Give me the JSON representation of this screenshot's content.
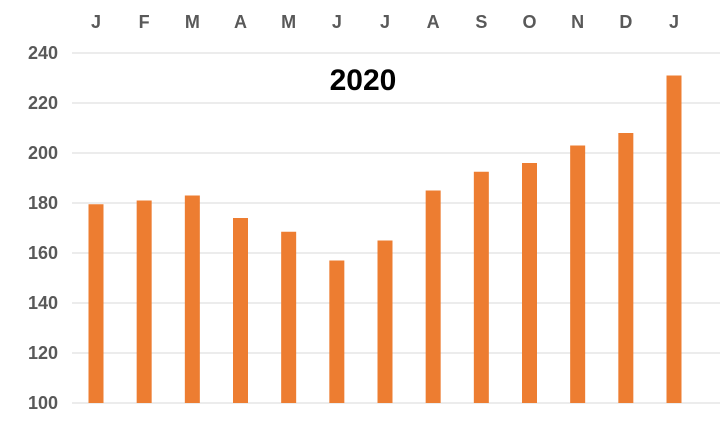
{
  "chart_data": {
    "type": "bar",
    "title": "2020",
    "xlabel": "",
    "ylabel": "",
    "categories": [
      "J",
      "F",
      "M",
      "A",
      "M",
      "J",
      "J",
      "A",
      "S",
      "O",
      "N",
      "D",
      "J"
    ],
    "values": [
      179.5,
      181,
      183,
      174,
      168.5,
      157,
      165,
      185,
      192.5,
      196,
      203,
      208,
      231
    ],
    "ylim": [
      100,
      240
    ],
    "yticks": [
      100,
      120,
      140,
      160,
      180,
      200,
      220,
      240
    ],
    "grid": true,
    "x_axis_position": "top",
    "legend": "none",
    "bar_color": "#ED7D31"
  }
}
